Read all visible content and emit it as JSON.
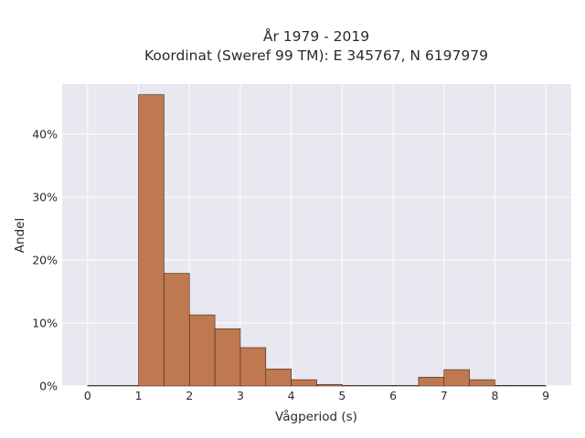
{
  "chart_data": {
    "type": "bar",
    "title_lines": [
      "År 1979 - 2019",
      "Koordinat (Sweref 99 TM): E 345767, N 6197979"
    ],
    "xlabel": "Vågperiod (s)",
    "ylabel": "Andel",
    "xlim": [
      -0.5,
      9.5
    ],
    "ylim": [
      0,
      48
    ],
    "xticks": [
      0,
      1,
      2,
      3,
      4,
      5,
      6,
      7,
      8,
      9
    ],
    "yticks": [
      0,
      10,
      20,
      30,
      40
    ],
    "ytick_labels": [
      "0%",
      "10%",
      "20%",
      "30%",
      "40%"
    ],
    "bin_width": 0.5,
    "bins": [
      {
        "start": 0.0,
        "value": 0.05
      },
      {
        "start": 0.5,
        "value": 0
      },
      {
        "start": 1.0,
        "value": 46.3
      },
      {
        "start": 1.5,
        "value": 17.9
      },
      {
        "start": 2.0,
        "value": 11.3
      },
      {
        "start": 2.5,
        "value": 9.1
      },
      {
        "start": 3.0,
        "value": 6.1
      },
      {
        "start": 3.5,
        "value": 2.7
      },
      {
        "start": 4.0,
        "value": 1.0
      },
      {
        "start": 4.5,
        "value": 0.25
      },
      {
        "start": 5.0,
        "value": 0.05
      },
      {
        "start": 5.5,
        "value": 0.05
      },
      {
        "start": 6.0,
        "value": 0.05
      },
      {
        "start": 6.5,
        "value": 1.4
      },
      {
        "start": 7.0,
        "value": 2.6
      },
      {
        "start": 7.5,
        "value": 1.0
      },
      {
        "start": 8.0,
        "value": 0.1
      },
      {
        "start": 8.5,
        "value": 0.1
      }
    ],
    "grid": true,
    "bar_color": "#c07850",
    "bar_edge_color": "#3a2a20",
    "plot_background": "#e8e8f0"
  }
}
